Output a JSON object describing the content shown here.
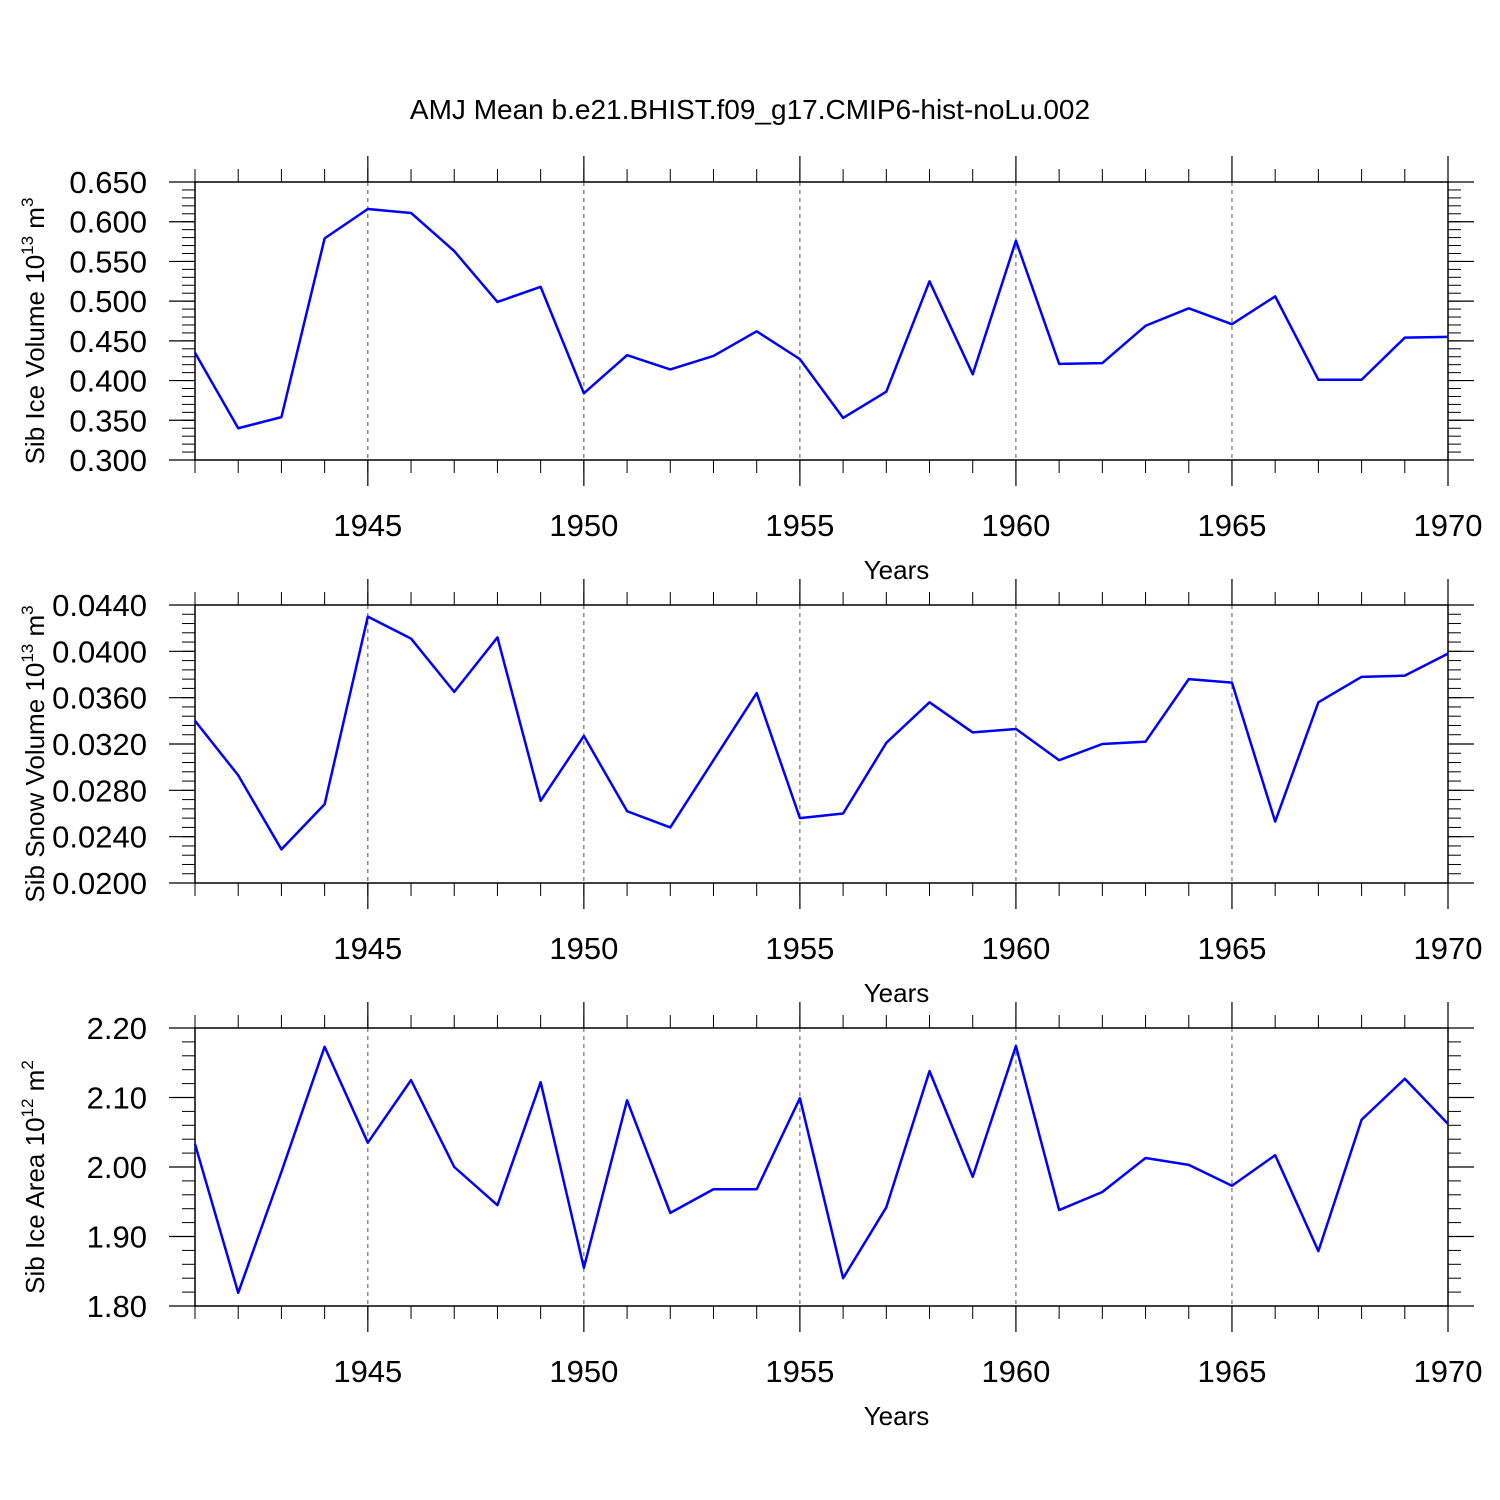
{
  "title": "AMJ Mean b.e21.BHIST.f09_g17.CMIP6-hist-noLu.002",
  "chart_data": [
    {
      "type": "line",
      "xlabel": "Years",
      "ylabel_parts": [
        "Sib Ice Volume 10",
        "13",
        " m",
        "3"
      ],
      "color": "#0000ff",
      "xgrid": true,
      "x": [
        1941,
        1942,
        1943,
        1944,
        1945,
        1946,
        1947,
        1948,
        1949,
        1950,
        1951,
        1952,
        1953,
        1954,
        1955,
        1956,
        1957,
        1958,
        1959,
        1960,
        1961,
        1962,
        1963,
        1964,
        1965,
        1966,
        1967,
        1968,
        1969,
        1970
      ],
      "values": [
        0.435,
        0.34,
        0.354,
        0.579,
        0.616,
        0.611,
        0.563,
        0.499,
        0.518,
        0.384,
        0.432,
        0.414,
        0.431,
        0.462,
        0.427,
        0.353,
        0.386,
        0.525,
        0.408,
        0.576,
        0.421,
        0.422,
        0.469,
        0.491,
        0.471,
        0.506,
        0.401,
        0.401,
        0.454,
        0.455
      ],
      "xlim": [
        1941,
        1970
      ],
      "xticks": [
        1945,
        1950,
        1955,
        1960,
        1965,
        1970
      ],
      "ylim": [
        0.3,
        0.65
      ],
      "yticks": [
        {
          "value": 0.3,
          "label": "0.300"
        },
        {
          "value": 0.35,
          "label": "0.350"
        },
        {
          "value": 0.4,
          "label": "0.400"
        },
        {
          "value": 0.45,
          "label": "0.450"
        },
        {
          "value": 0.5,
          "label": "0.500"
        },
        {
          "value": 0.55,
          "label": "0.550"
        },
        {
          "value": 0.6,
          "label": "0.600"
        },
        {
          "value": 0.65,
          "label": "0.650"
        }
      ]
    },
    {
      "type": "line",
      "xlabel": "Years",
      "ylabel_parts": [
        "Sib Snow Volume 10",
        "13",
        " m",
        "3"
      ],
      "color": "#0000ff",
      "xgrid": true,
      "x": [
        1941,
        1942,
        1943,
        1944,
        1945,
        1946,
        1947,
        1948,
        1949,
        1950,
        1951,
        1952,
        1953,
        1954,
        1955,
        1956,
        1957,
        1958,
        1959,
        1960,
        1961,
        1962,
        1963,
        1964,
        1965,
        1966,
        1967,
        1968,
        1969,
        1970
      ],
      "values": [
        0.034,
        0.0293,
        0.0229,
        0.0268,
        0.043,
        0.0411,
        0.0365,
        0.0412,
        0.0271,
        0.0327,
        0.0262,
        0.0248,
        0.0306,
        0.0364,
        0.0256,
        0.026,
        0.0321,
        0.0356,
        0.033,
        0.0333,
        0.0306,
        0.032,
        0.0322,
        0.0376,
        0.0373,
        0.0253,
        0.0356,
        0.0378,
        0.0379,
        0.0398
      ],
      "xlim": [
        1941,
        1970
      ],
      "xticks": [
        1945,
        1950,
        1955,
        1960,
        1965,
        1970
      ],
      "ylim": [
        0.02,
        0.044
      ],
      "yticks": [
        {
          "value": 0.02,
          "label": "0.0200"
        },
        {
          "value": 0.024,
          "label": "0.0240"
        },
        {
          "value": 0.028,
          "label": "0.0280"
        },
        {
          "value": 0.032,
          "label": "0.0320"
        },
        {
          "value": 0.036,
          "label": "0.0360"
        },
        {
          "value": 0.04,
          "label": "0.0400"
        },
        {
          "value": 0.044,
          "label": "0.0440"
        }
      ]
    },
    {
      "type": "line",
      "xlabel": "Years",
      "ylabel_parts": [
        "Sib Ice Area 10",
        "12",
        " m",
        "2"
      ],
      "color": "#0000ff",
      "xgrid": true,
      "x": [
        1941,
        1942,
        1943,
        1944,
        1945,
        1946,
        1947,
        1948,
        1949,
        1950,
        1951,
        1952,
        1953,
        1954,
        1955,
        1956,
        1957,
        1958,
        1959,
        1960,
        1961,
        1962,
        1963,
        1964,
        1965,
        1966,
        1967,
        1968,
        1969,
        1970
      ],
      "values": [
        2.033,
        1.819,
        1.993,
        2.173,
        2.035,
        2.125,
        2.0,
        1.945,
        2.122,
        1.855,
        2.096,
        1.934,
        1.968,
        1.968,
        2.099,
        1.84,
        1.942,
        2.138,
        1.986,
        2.174,
        1.938,
        1.964,
        2.013,
        2.003,
        1.973,
        2.017,
        1.879,
        2.068,
        2.127,
        2.062
      ],
      "xlim": [
        1941,
        1970
      ],
      "xticks": [
        1945,
        1950,
        1955,
        1960,
        1965,
        1970
      ],
      "ylim": [
        1.8,
        2.2
      ],
      "yticks": [
        {
          "value": 1.8,
          "label": "1.80"
        },
        {
          "value": 1.9,
          "label": "1.90"
        },
        {
          "value": 2.0,
          "label": "2.00"
        },
        {
          "value": 2.1,
          "label": "2.10"
        },
        {
          "value": 2.2,
          "label": "2.20"
        }
      ]
    }
  ]
}
